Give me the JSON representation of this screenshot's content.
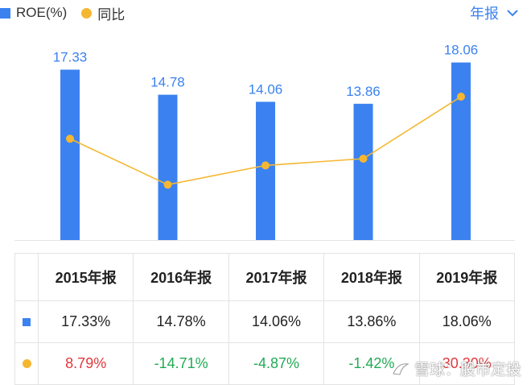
{
  "legend": {
    "series1": "ROE(%)",
    "series2": "同比"
  },
  "period_selector": "年报",
  "watermark": "雪球：股市定投",
  "colors": {
    "bar": "#3b82f0",
    "line": "#f5b731",
    "positive": "#e0393e",
    "negative": "#22aa55"
  },
  "table": {
    "headers": [
      "2015年报",
      "2016年报",
      "2017年报",
      "2018年报",
      "2019年报"
    ],
    "roe": [
      "17.33%",
      "14.78%",
      "14.06%",
      "13.86%",
      "18.06%"
    ],
    "yoy": [
      "8.79%",
      "-14.71%",
      "-4.87%",
      "-1.42%",
      "30.30%"
    ]
  },
  "chart_data": {
    "type": "bar",
    "categories": [
      "2015年报",
      "2016年报",
      "2017年报",
      "2018年报",
      "2019年报"
    ],
    "series": [
      {
        "name": "ROE(%)",
        "type": "bar",
        "values": [
          17.33,
          14.78,
          14.06,
          13.86,
          18.06
        ],
        "labels": [
          "17.33",
          "14.78",
          "14.06",
          "13.86",
          "18.06"
        ]
      },
      {
        "name": "同比",
        "type": "line",
        "values": [
          8.79,
          -14.71,
          -4.87,
          -1.42,
          30.3
        ]
      }
    ],
    "ylim": [
      0,
      19.5
    ],
    "y2lim": [
      -43,
      55
    ],
    "grid": false
  }
}
